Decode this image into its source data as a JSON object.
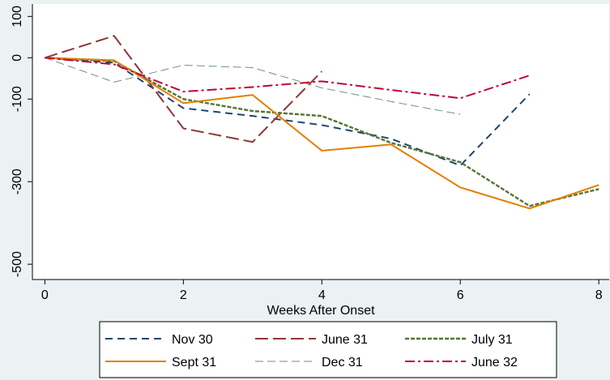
{
  "chart_data": {
    "type": "line",
    "x": [
      0,
      1,
      2,
      3,
      4,
      5,
      6,
      7,
      8
    ],
    "xlabel": "Weeks After Onset",
    "xlim": [
      -0.18,
      8.15
    ],
    "xticks": [
      0,
      2,
      4,
      6,
      8
    ],
    "ylim": [
      -537,
      130
    ],
    "yticks": [
      100,
      0,
      -100,
      -300,
      -500
    ],
    "series": [
      {
        "name": "Nov 30",
        "color": "#1a476f",
        "dash": "9 6",
        "width": 2,
        "values": [
          0,
          -12,
          -122,
          -141,
          -163,
          -196,
          -261,
          -88,
          null
        ]
      },
      {
        "name": "June 31",
        "color": "#90353b",
        "dash": "16 6",
        "width": 2,
        "values": [
          0,
          53,
          -171,
          -204,
          -33,
          null,
          null,
          null,
          null
        ]
      },
      {
        "name": "July 31",
        "color": "#55752f",
        "dash": "5 2",
        "width": 2.4,
        "values": [
          0,
          -8,
          -100,
          -129,
          -141,
          -206,
          -253,
          -359,
          -318
        ]
      },
      {
        "name": "Sept 31",
        "color": "#e37e00",
        "dash": "none",
        "width": 2,
        "values": [
          0,
          -6,
          -110,
          -90,
          -225,
          -210,
          -314,
          -365,
          -308
        ]
      },
      {
        "name": "Dec 31",
        "color": "#6e8e84",
        "dash": "10 5",
        "width": 1,
        "values": [
          0,
          -59,
          -18,
          -24,
          -73,
          -106,
          -137,
          null,
          null
        ]
      },
      {
        "name": "June 32",
        "color": "#c10534",
        "dash": "12 4 3 4",
        "width": 2,
        "values": [
          0,
          -16,
          -82,
          -71,
          -57,
          -78,
          -98,
          -43,
          null
        ]
      }
    ]
  }
}
